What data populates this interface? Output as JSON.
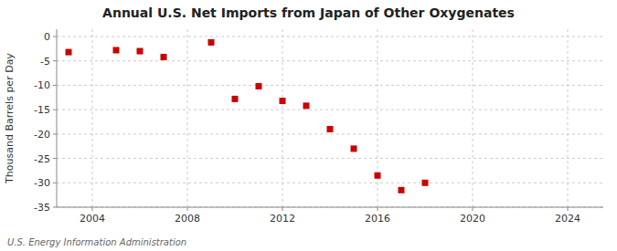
{
  "chart_data": {
    "type": "scatter",
    "title": "Annual U.S. Net Imports from Japan of Other Oxygenates",
    "ylabel": "Thousand Barrels per Day",
    "annotations": [
      "U.S. Energy Information Administration"
    ],
    "x": [
      2003,
      2005,
      2006,
      2007,
      2009,
      2010,
      2011,
      2012,
      2013,
      2014,
      2015,
      2016,
      2017,
      2018
    ],
    "values": [
      -3.2,
      -2.8,
      -3.0,
      -4.2,
      -1.2,
      -12.8,
      -10.2,
      -13.2,
      -14.2,
      -19.0,
      -23.0,
      -28.5,
      -31.5,
      -30.0
    ],
    "color": "#cc0000",
    "marker": "square",
    "xlim": [
      2002.5,
      2025.5
    ],
    "ylim": [
      -35,
      1.5
    ],
    "xticks": [
      2004,
      2008,
      2012,
      2016,
      2020,
      2024
    ],
    "yticks": [
      0,
      -5,
      -10,
      -15,
      -20,
      -25,
      -30,
      -35
    ],
    "grid": true
  }
}
